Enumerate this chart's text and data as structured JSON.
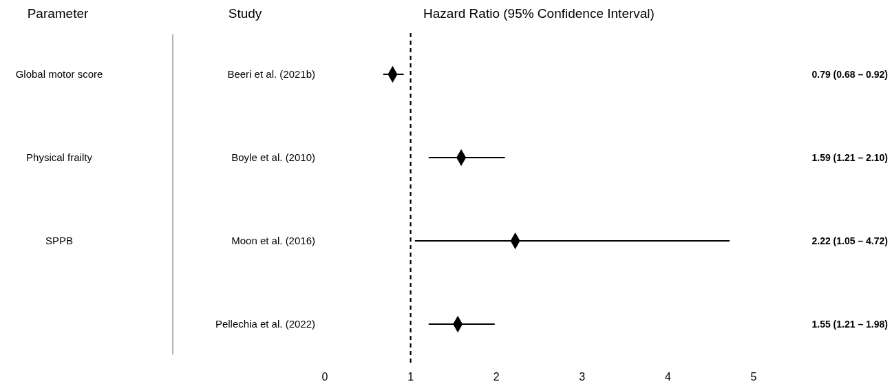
{
  "chart_data": {
    "type": "scatter",
    "orientation": "horizontal",
    "title": "Hazard Ratio (95% Confidence Interval)",
    "ylabel": "Study",
    "categories": [
      "Beeri et al. (2021b)",
      "Boyle et al. (2010)",
      "Moon et al. (2016)",
      "Pellechia et al. (2022)"
    ],
    "values": [
      0.79,
      1.59,
      2.22,
      1.55
    ],
    "errors": [
      [
        0.68,
        0.92
      ],
      [
        1.21,
        2.1
      ],
      [
        1.05,
        4.72
      ],
      [
        1.21,
        1.98
      ]
    ],
    "value_labels": [
      "0.79 (0.68 – 0.92)",
      "1.59 (1.21 – 2.10)",
      "2.22 (1.05 – 4.72)",
      "1.55 (1.21 – 1.98)"
    ],
    "color": "#000000",
    "marker": "diamond",
    "xlim": [
      0,
      5
    ],
    "xticks": [
      0,
      1,
      2,
      3,
      4,
      5
    ],
    "grid": false,
    "ref_lines": [
      {
        "axis": "x",
        "value": 1,
        "line_style": "dashed",
        "color": "#000000"
      }
    ],
    "annotations": [
      "Parameter",
      "Global motor score",
      "Physical frailty",
      "SPPB"
    ]
  }
}
